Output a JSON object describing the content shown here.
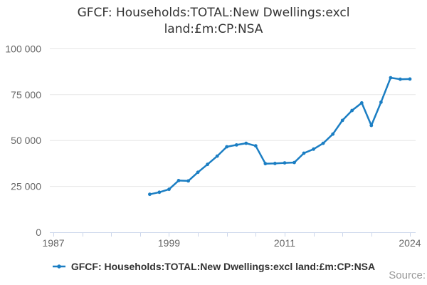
{
  "chart_data": {
    "type": "line",
    "title": "GFCF: Households:TOTAL:New Dwellings:excl land:£m:CP:NSA",
    "xlabel": "",
    "ylabel": "",
    "grid": true,
    "legend_position": "bottom-center",
    "x_axis": {
      "min_year": 1987,
      "max_year": 2024,
      "tick_years": [
        1987,
        1990,
        1993,
        1996,
        1999,
        2002,
        2005,
        2008,
        2011,
        2014,
        2017,
        2020,
        2024
      ],
      "labeled_years": [
        1987,
        1999,
        2011,
        2024
      ]
    },
    "y_axis": {
      "min": 0,
      "max": 100000,
      "ticks": [
        {
          "value": 0,
          "label": "0"
        },
        {
          "value": 25000,
          "label": "25 000"
        },
        {
          "value": 50000,
          "label": "50 000"
        },
        {
          "value": 75000,
          "label": "75 000"
        },
        {
          "value": 100000,
          "label": "100 000"
        }
      ]
    },
    "series": [
      {
        "name": "GFCF: Households:TOTAL:New Dwellings:excl land:£m:CP:NSA",
        "color": "#1b7ec3",
        "years": [
          1997,
          1998,
          1999,
          2000,
          2001,
          2002,
          2003,
          2004,
          2005,
          2006,
          2007,
          2008,
          2009,
          2010,
          2011,
          2012,
          2013,
          2014,
          2015,
          2016,
          2017,
          2018,
          2019,
          2020,
          2021,
          2022,
          2023,
          2024
        ],
        "values": [
          20700,
          21800,
          23400,
          28200,
          28000,
          32700,
          37000,
          41500,
          46600,
          47600,
          48500,
          47100,
          37400,
          37500,
          37800,
          38000,
          43100,
          45300,
          48500,
          53500,
          61000,
          66400,
          70500,
          58200,
          70900,
          84200,
          83400,
          83500
        ]
      }
    ]
  },
  "footer": {
    "source_label": "Source:"
  },
  "colors": {
    "line": "#1b7ec3",
    "axis_line": "#ccd6eb",
    "grid_line": "#e6e6e6",
    "axis_label": "#666666",
    "title": "#333333",
    "source": "#999999"
  }
}
